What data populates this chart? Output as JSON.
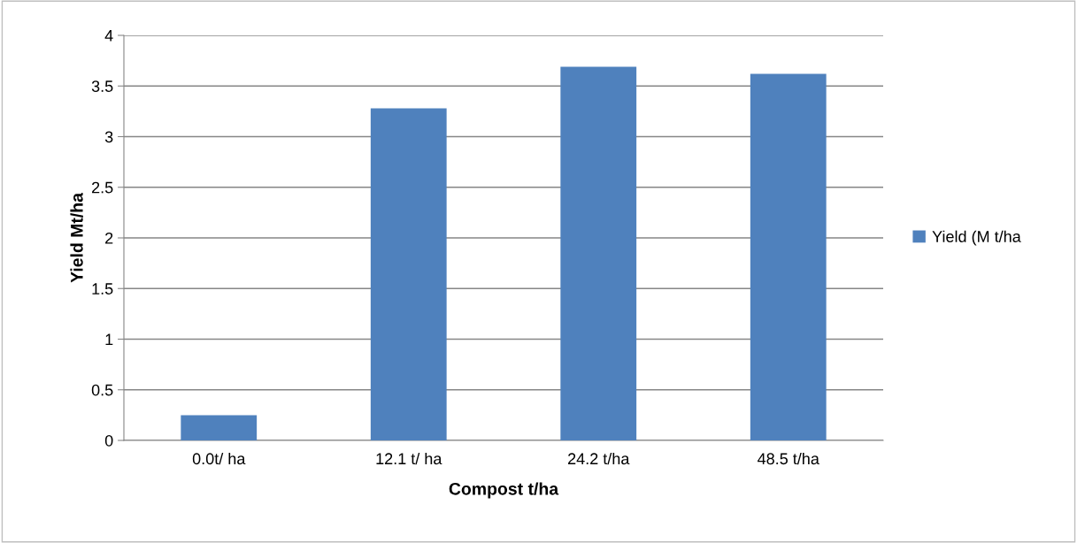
{
  "chart_data": {
    "type": "bar",
    "xlabel": "Compost t/ha",
    "ylabel": "Yield Mt/ha",
    "categories": [
      "0.0t/ ha",
      "12.1 t/ ha",
      "24.2 t/ha",
      "48.5 t/ha"
    ],
    "series": [
      {
        "name": "Yield (M t/ha",
        "color": "#4f81bd",
        "values": [
          0.25,
          3.28,
          3.69,
          3.62
        ]
      }
    ],
    "ylim": [
      0,
      4
    ],
    "yticks": [
      0,
      0.5,
      1,
      1.5,
      2,
      2.5,
      3,
      3.5,
      4
    ],
    "grid": "y",
    "legend": "right"
  }
}
